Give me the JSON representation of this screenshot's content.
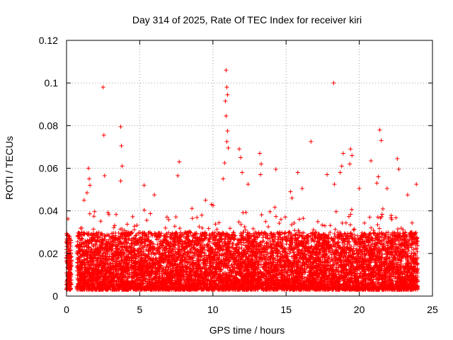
{
  "chart_data": {
    "type": "scatter",
    "title": "Day 314 of 2025, Rate Of TEC Index for receiver kiri",
    "xlabel": "GPS time / hours",
    "ylabel": "ROTI / TECUs",
    "xlim": [
      0,
      25
    ],
    "ylim": [
      0,
      0.12
    ],
    "xticks": [
      0,
      5,
      10,
      15,
      20,
      25
    ],
    "yticks": [
      0,
      0.02,
      0.04,
      0.06,
      0.08,
      0.1,
      0.12
    ],
    "xtick_labels": [
      "0",
      "5",
      "10",
      "15",
      "20",
      "25"
    ],
    "ytick_labels": [
      "0",
      "0.02",
      "0.04",
      "0.06",
      "0.08",
      "0.1",
      "0.12"
    ],
    "grid": true,
    "marker": "+",
    "color": "#ff0000",
    "series": [
      {
        "name": "ROTI",
        "description": "dense cloud of ROTI samples from 0 to 24 h, mostly 0.003-0.03 TECU/min",
        "x_range": [
          0,
          24
        ],
        "typical_range": [
          0.003,
          0.03
        ],
        "points": [
          [
            2.5,
            0.098
          ],
          [
            2.55,
            0.0755
          ],
          [
            2.6,
            0.0565
          ],
          [
            3.7,
            0.0795
          ],
          [
            3.75,
            0.0705
          ],
          [
            3.8,
            0.061
          ],
          [
            3.7,
            0.054
          ],
          [
            1.5,
            0.06
          ],
          [
            1.55,
            0.055
          ],
          [
            1.6,
            0.052
          ],
          [
            1.4,
            0.0485
          ],
          [
            1.2,
            0.045
          ],
          [
            5.3,
            0.052
          ],
          [
            6.0,
            0.0475
          ],
          [
            7.7,
            0.063
          ],
          [
            7.6,
            0.0565
          ],
          [
            9.5,
            0.045
          ],
          [
            9.9,
            0.043
          ],
          [
            10.9,
            0.106
          ],
          [
            10.95,
            0.098
          ],
          [
            11.0,
            0.0945
          ],
          [
            10.85,
            0.0915
          ],
          [
            10.9,
            0.0845
          ],
          [
            11.0,
            0.0775
          ],
          [
            10.95,
            0.0725
          ],
          [
            11.05,
            0.0695
          ],
          [
            10.8,
            0.0625
          ],
          [
            10.7,
            0.055
          ],
          [
            11.8,
            0.069
          ],
          [
            11.9,
            0.065
          ],
          [
            12.0,
            0.058
          ],
          [
            12.4,
            0.0525
          ],
          [
            13.2,
            0.067
          ],
          [
            13.3,
            0.062
          ],
          [
            13.25,
            0.057
          ],
          [
            14.3,
            0.0595
          ],
          [
            15.3,
            0.049
          ],
          [
            15.4,
            0.046
          ],
          [
            15.8,
            0.058
          ],
          [
            16.1,
            0.0505
          ],
          [
            16.7,
            0.0725
          ],
          [
            17.8,
            0.057
          ],
          [
            18.3,
            0.0525
          ],
          [
            18.25,
            0.1
          ],
          [
            18.9,
            0.067
          ],
          [
            18.8,
            0.061
          ],
          [
            18.7,
            0.058
          ],
          [
            19.4,
            0.069
          ],
          [
            19.5,
            0.066
          ],
          [
            19.35,
            0.062
          ],
          [
            20.0,
            0.0505
          ],
          [
            20.8,
            0.0635
          ],
          [
            21.4,
            0.078
          ],
          [
            21.5,
            0.073
          ],
          [
            21.3,
            0.056
          ],
          [
            21.2,
            0.053
          ],
          [
            21.9,
            0.0505
          ],
          [
            22.6,
            0.0645
          ],
          [
            22.7,
            0.0595
          ],
          [
            23.3,
            0.0475
          ],
          [
            23.9,
            0.0525
          ]
        ]
      }
    ]
  }
}
